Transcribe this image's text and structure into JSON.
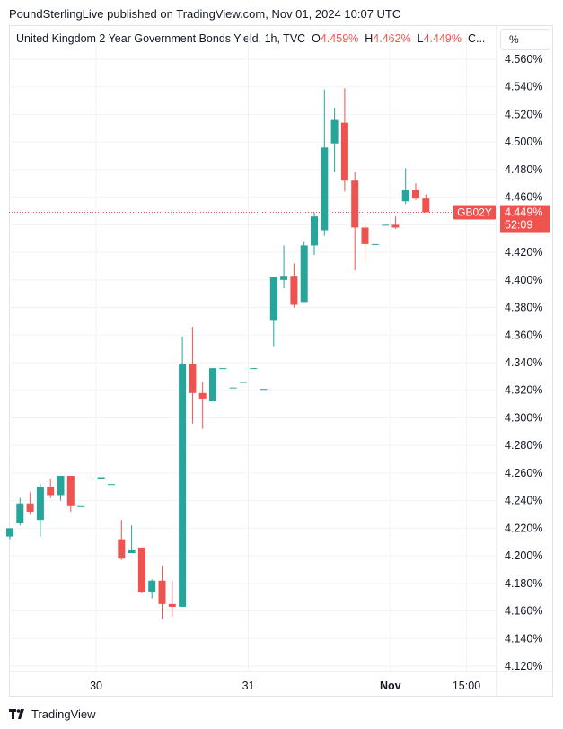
{
  "header": {
    "published_by": "PoundSterlingLive published on TradingView.com, Nov 01, 2024 10:07 UTC"
  },
  "legend": {
    "symbol": "United Kingdom 2 Year Government Bonds Yield, 1h, TVC",
    "o_label": "O",
    "o_value": "4.459%",
    "h_label": "H",
    "h_value": "4.462%",
    "l_label": "L",
    "l_value": "4.449%",
    "c_label": "C..."
  },
  "unit_selector": "%",
  "footer": {
    "brand": "TradingView",
    "logo_icon": "tradingview-logo-icon"
  },
  "colors": {
    "up": "#26a69a",
    "down": "#ef5350",
    "grid": "#f0f3fa"
  },
  "chart_data": {
    "type": "candlestick",
    "timeframe": "1h",
    "y_unit": "%",
    "ylim": [
      4.115,
      4.575
    ],
    "y_ticks": [
      "4.120%",
      "4.140%",
      "4.160%",
      "4.180%",
      "4.200%",
      "4.220%",
      "4.240%",
      "4.260%",
      "4.280%",
      "4.300%",
      "4.320%",
      "4.340%",
      "4.360%",
      "4.380%",
      "4.400%",
      "4.420%",
      "4.440%",
      "4.460%",
      "4.480%",
      "4.500%",
      "4.520%",
      "4.540%",
      "4.560%"
    ],
    "x_ticks": [
      {
        "label": "30",
        "index": 8.5,
        "bold": false
      },
      {
        "label": "31",
        "index": 23.5,
        "bold": false
      },
      {
        "label": "Nov",
        "index": 37.5,
        "bold": true
      },
      {
        "label": "15:00",
        "index": 45,
        "bold": false
      }
    ],
    "last_price": {
      "symbol": "GB02Y",
      "value": "4.449%",
      "countdown": "52:09",
      "y": 4.449
    },
    "candles": [
      {
        "o": 4.214,
        "h": 4.22,
        "l": 4.212,
        "c": 4.22
      },
      {
        "o": 4.224,
        "h": 4.242,
        "l": 4.222,
        "c": 4.238
      },
      {
        "o": 4.238,
        "h": 4.246,
        "l": 4.23,
        "c": 4.232
      },
      {
        "o": 4.226,
        "h": 4.252,
        "l": 4.214,
        "c": 4.25
      },
      {
        "o": 4.25,
        "h": 4.256,
        "l": 4.242,
        "c": 4.244
      },
      {
        "o": 4.244,
        "h": 4.258,
        "l": 4.24,
        "c": 4.258
      },
      {
        "o": 4.258,
        "h": 4.258,
        "l": 4.232,
        "c": 4.236
      },
      {
        "o": 4.236,
        "h": 4.236,
        "l": 4.236,
        "c": 4.236
      },
      {
        "o": 4.256,
        "h": 4.256,
        "l": 4.256,
        "c": 4.256
      },
      {
        "o": 4.256,
        "h": 4.256,
        "l": 4.256,
        "c": 4.257
      },
      {
        "o": 4.252,
        "h": 4.252,
        "l": 4.252,
        "c": 4.252
      },
      {
        "o": 4.212,
        "h": 4.226,
        "l": 4.197,
        "c": 4.198
      },
      {
        "o": 4.202,
        "h": 4.222,
        "l": 4.202,
        "c": 4.204
      },
      {
        "o": 4.206,
        "h": 4.206,
        "l": 4.173,
        "c": 4.174
      },
      {
        "o": 4.174,
        "h": 4.183,
        "l": 4.169,
        "c": 4.182
      },
      {
        "o": 4.182,
        "h": 4.193,
        "l": 4.154,
        "c": 4.165
      },
      {
        "o": 4.165,
        "h": 4.182,
        "l": 4.156,
        "c": 4.163
      },
      {
        "o": 4.163,
        "h": 4.359,
        "l": 4.163,
        "c": 4.339
      },
      {
        "o": 4.339,
        "h": 4.366,
        "l": 4.296,
        "c": 4.318
      },
      {
        "o": 4.318,
        "h": 4.326,
        "l": 4.292,
        "c": 4.314
      },
      {
        "o": 4.312,
        "h": 4.336,
        "l": 4.312,
        "c": 4.336
      },
      {
        "o": 4.336,
        "h": 4.336,
        "l": 4.336,
        "c": 4.336
      },
      {
        "o": 4.322,
        "h": 4.322,
        "l": 4.322,
        "c": 4.322
      },
      {
        "o": 4.326,
        "h": 4.326,
        "l": 4.326,
        "c": 4.326
      },
      {
        "o": 4.336,
        "h": 4.336,
        "l": 4.336,
        "c": 4.336
      },
      {
        "o": 4.321,
        "h": 4.321,
        "l": 4.321,
        "c": 4.321
      },
      {
        "o": 4.371,
        "h": 4.402,
        "l": 4.352,
        "c": 4.402
      },
      {
        "o": 4.4,
        "h": 4.425,
        "l": 4.394,
        "c": 4.403
      },
      {
        "o": 4.403,
        "h": 4.412,
        "l": 4.38,
        "c": 4.382
      },
      {
        "o": 4.384,
        "h": 4.428,
        "l": 4.384,
        "c": 4.425
      },
      {
        "o": 4.425,
        "h": 4.449,
        "l": 4.418,
        "c": 4.446
      },
      {
        "o": 4.436,
        "h": 4.538,
        "l": 4.432,
        "c": 4.496
      },
      {
        "o": 4.499,
        "h": 4.525,
        "l": 4.478,
        "c": 4.516
      },
      {
        "o": 4.514,
        "h": 4.539,
        "l": 4.464,
        "c": 4.472
      },
      {
        "o": 4.472,
        "h": 4.478,
        "l": 4.407,
        "c": 4.438
      },
      {
        "o": 4.438,
        "h": 4.442,
        "l": 4.414,
        "c": 4.426
      },
      {
        "o": 4.426,
        "h": 4.426,
        "l": 4.426,
        "c": 4.426
      },
      {
        "o": 4.44,
        "h": 4.44,
        "l": 4.44,
        "c": 4.44
      },
      {
        "o": 4.44,
        "h": 4.446,
        "l": 4.437,
        "c": 4.438
      },
      {
        "o": 4.457,
        "h": 4.481,
        "l": 4.455,
        "c": 4.465
      },
      {
        "o": 4.465,
        "h": 4.47,
        "l": 4.458,
        "c": 4.459
      },
      {
        "o": 4.459,
        "h": 4.462,
        "l": 4.449,
        "c": 4.449
      }
    ]
  }
}
